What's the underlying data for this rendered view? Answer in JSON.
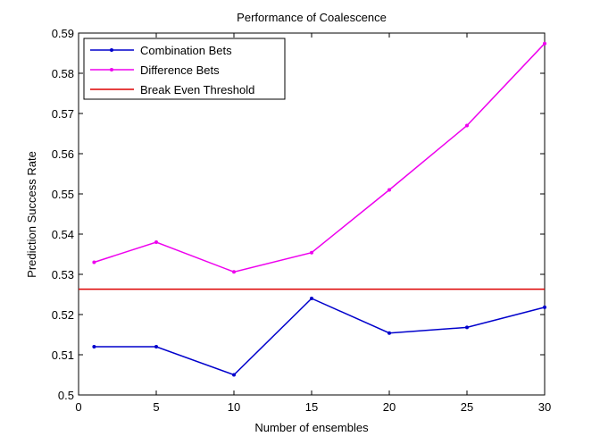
{
  "chart_data": {
    "type": "line",
    "title": "Performance of Coalescence",
    "xlabel": "Number of ensembles",
    "ylabel": "Prediction Success Rate",
    "xlim": [
      0,
      30
    ],
    "ylim": [
      0.5,
      0.59
    ],
    "xticks": [
      0,
      5,
      10,
      15,
      20,
      25,
      30
    ],
    "yticks": [
      0.5,
      0.51,
      0.52,
      0.53,
      0.54,
      0.55,
      0.56,
      0.57,
      0.58,
      0.59
    ],
    "xtick_labels": [
      "0",
      "5",
      "10",
      "15",
      "20",
      "25",
      "30"
    ],
    "ytick_labels": [
      "0.5",
      "0.51",
      "0.52",
      "0.53",
      "0.54",
      "0.55",
      "0.56",
      "0.57",
      "0.58",
      "0.59"
    ],
    "grid": false,
    "legend_position": "top-left",
    "series": [
      {
        "name": "Combination Bets",
        "color": "#0000cc",
        "marker": "point",
        "x": [
          1,
          5,
          10,
          15,
          20,
          25,
          30
        ],
        "y": [
          0.512,
          0.512,
          0.505,
          0.524,
          0.5154,
          0.5168,
          0.5218
        ]
      },
      {
        "name": "Difference Bets",
        "color": "#ee00ee",
        "marker": "point",
        "x": [
          1,
          5,
          10,
          15,
          20,
          25,
          30
        ],
        "y": [
          0.533,
          0.538,
          0.5306,
          0.5354,
          0.551,
          0.567,
          0.5874
        ]
      },
      {
        "name": "Break Even Threshold",
        "color": "#dd0000",
        "marker": "none",
        "x": [
          0,
          30
        ],
        "y": [
          0.5263,
          0.5263
        ]
      }
    ]
  }
}
